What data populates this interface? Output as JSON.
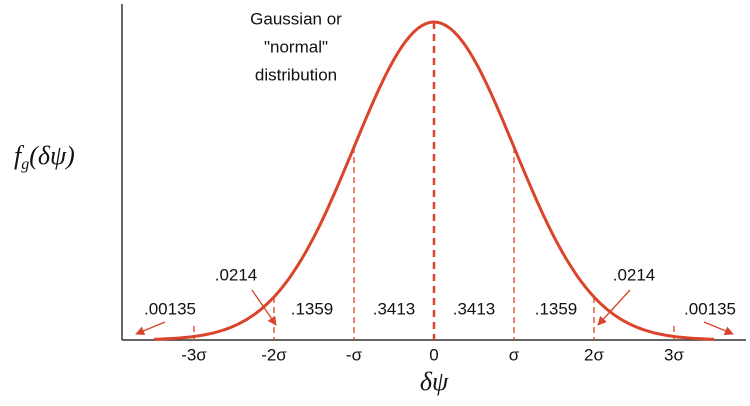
{
  "annotation": [
    "Gaussian or",
    "\"normal\"",
    "distribution"
  ],
  "y_label": {
    "base": "f",
    "subscript": "g",
    "rest": "(δψ)"
  },
  "x_label": "δψ",
  "x_ticks": [
    "-3σ",
    "-2σ",
    "-σ",
    "0",
    "σ",
    "2σ",
    "3σ"
  ],
  "regions": [
    ".00135",
    ".0214",
    ".1359",
    ".3413",
    ".3413",
    ".1359",
    ".0214",
    ".00135"
  ]
}
